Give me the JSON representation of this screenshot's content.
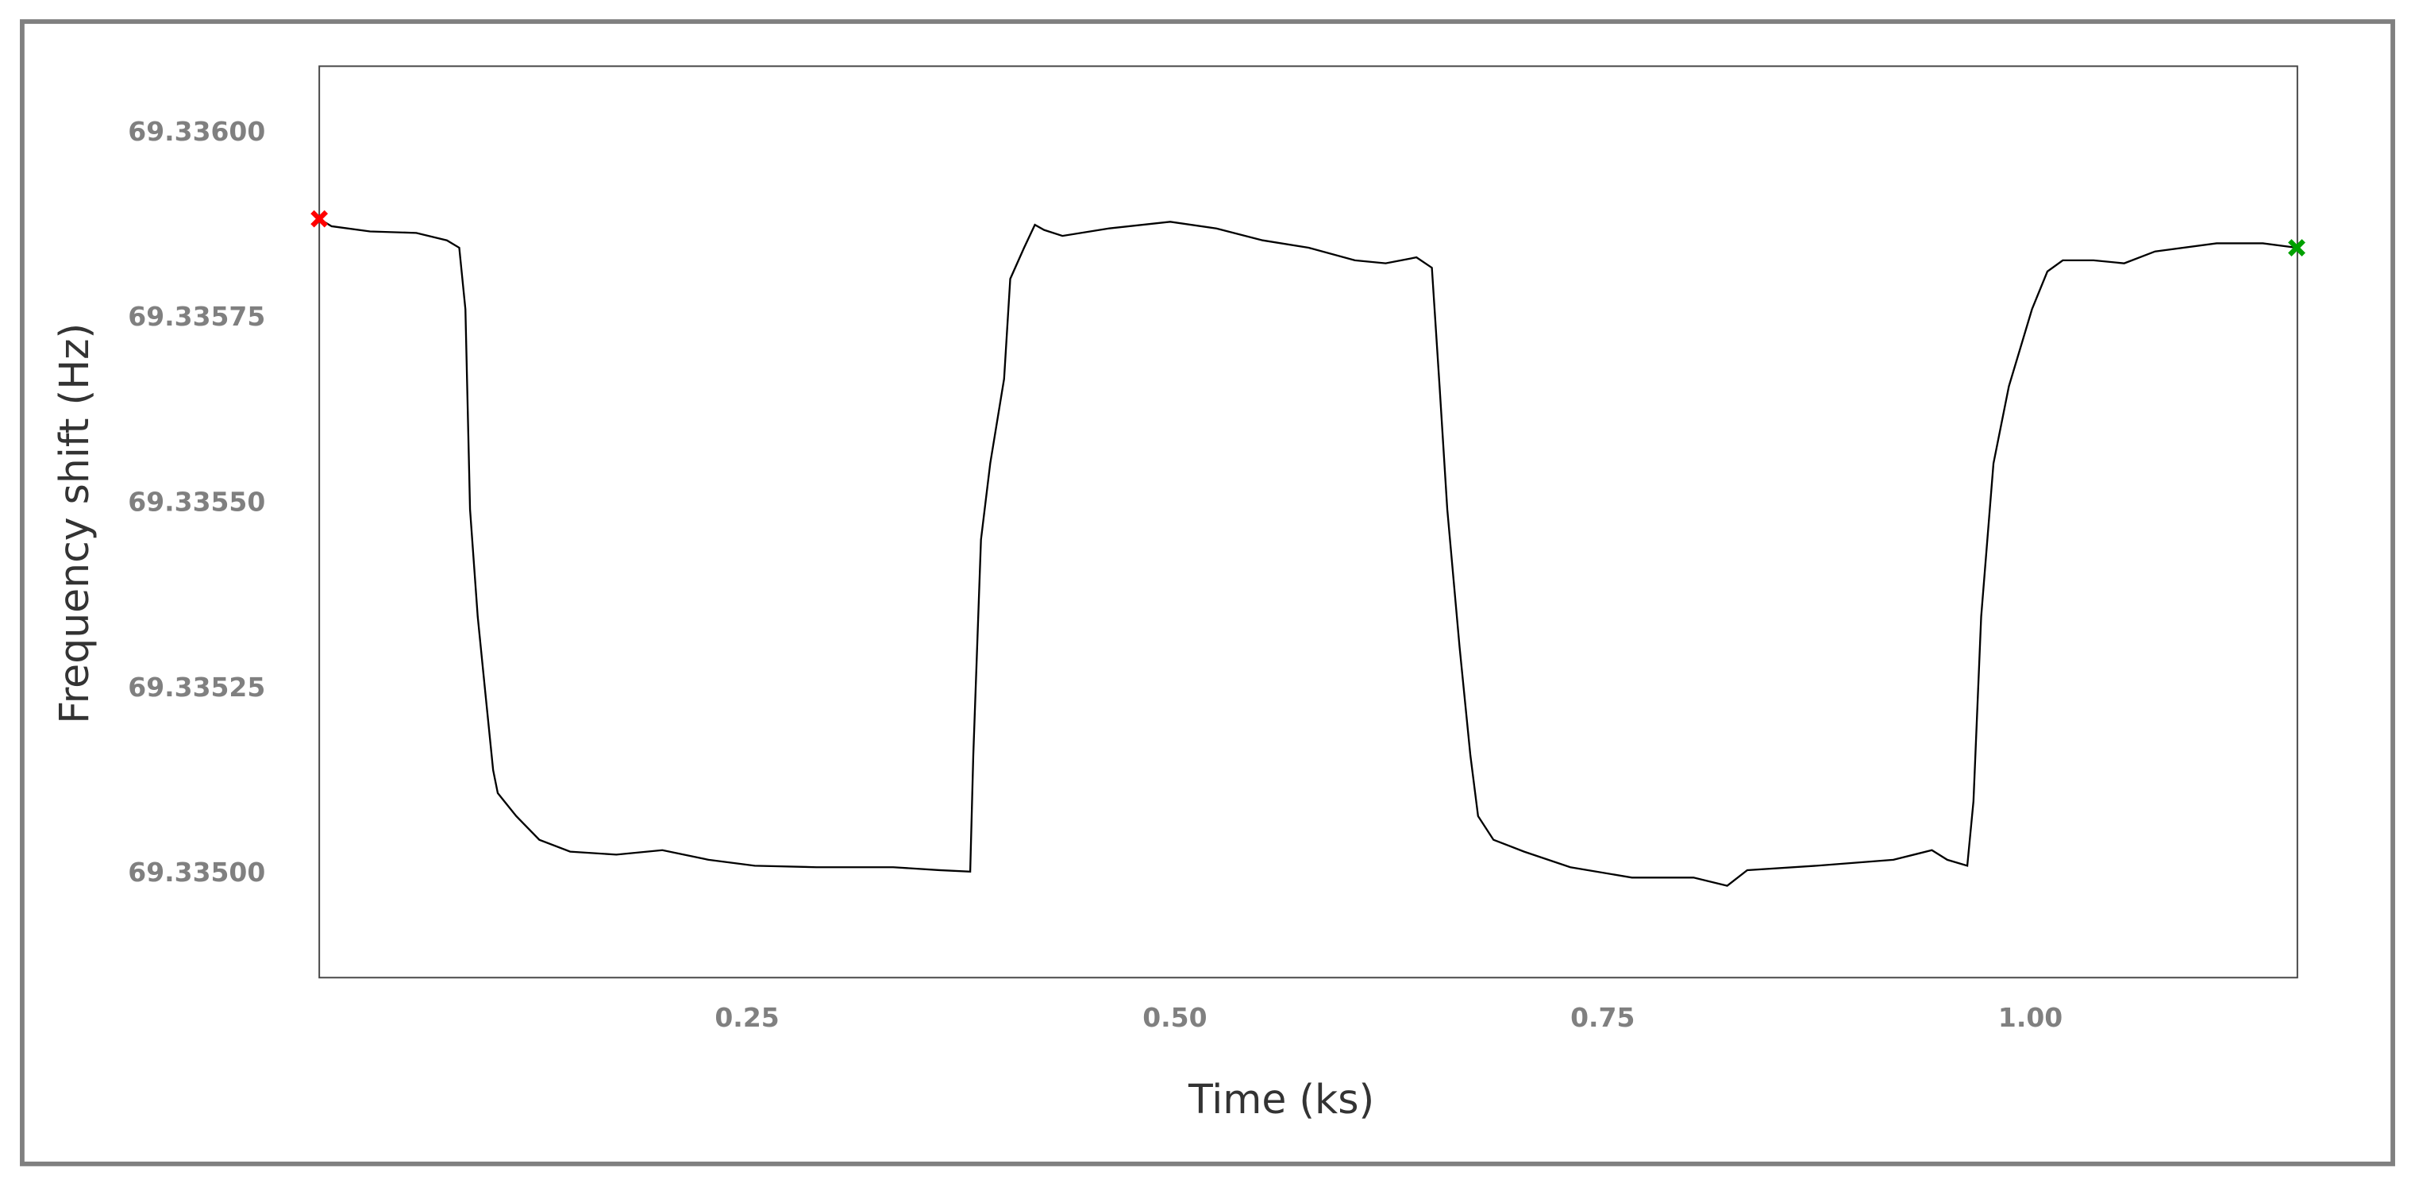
{
  "chart_data": {
    "type": "line",
    "x_label": "Time (ks)",
    "y_label": "Frequency shift (Hz)",
    "x": [
      0,
      0.0072,
      0.0297,
      0.0567,
      0.0746,
      0.0818,
      0.0854,
      0.0881,
      0.0926,
      0.0971,
      0.1016,
      0.1043,
      0.1151,
      0.1286,
      0.1466,
      0.1736,
      0.2005,
      0.2275,
      0.2545,
      0.2905,
      0.3354,
      0.3624,
      0.3804,
      0.3822,
      0.3867,
      0.3921,
      0.4002,
      0.4038,
      0.4119,
      0.4182,
      0.4236,
      0.4343,
      0.4613,
      0.4973,
      0.5243,
      0.5513,
      0.5782,
      0.6052,
      0.6232,
      0.6412,
      0.6502,
      0.6547,
      0.6592,
      0.6664,
      0.6727,
      0.6772,
      0.6862,
      0.7041,
      0.7311,
      0.7671,
      0.8031,
      0.8228,
      0.8345,
      0.875,
      0.9199,
      0.9424,
      0.9514,
      0.9631,
      0.9667,
      0.9712,
      0.9784,
      0.9874,
      1.0009,
      1.0099,
      1.0189,
      1.0369,
      1.0548,
      1.0728,
      1.1088,
      1.1358,
      1.1556
    ],
    "values": [
      69.335884,
      69.335874,
      69.335867,
      69.335865,
      69.335855,
      69.335845,
      69.335762,
      69.335492,
      69.335347,
      69.335243,
      69.33514,
      69.335109,
      69.335078,
      69.335046,
      69.33503,
      69.335026,
      69.335032,
      69.335019,
      69.335011,
      69.335009,
      69.335009,
      69.335005,
      69.335003,
      69.33516,
      69.335451,
      69.335554,
      69.335668,
      69.335803,
      69.335845,
      69.335876,
      69.335869,
      69.335861,
      69.335871,
      69.33588,
      69.335871,
      69.335855,
      69.335845,
      69.335828,
      69.335824,
      69.335832,
      69.335818,
      69.335658,
      69.335492,
      69.335306,
      69.33516,
      69.335078,
      69.335046,
      69.33503,
      69.335009,
      69.334995,
      69.334995,
      69.334984,
      69.335005,
      69.335011,
      69.335019,
      69.335032,
      69.335019,
      69.335011,
      69.335098,
      69.335347,
      69.335554,
      69.335658,
      69.335762,
      69.335813,
      69.335828,
      69.335828,
      69.335824,
      69.33584,
      69.335851,
      69.335851,
      69.335845
    ],
    "color": "#000000",
    "points": [
      {
        "x": 0,
        "y": 69.335884,
        "color": "#ff0000"
      },
      {
        "x": 1.1556,
        "y": 69.335845,
        "color": "#00a000"
      }
    ],
    "xlim": [
      0,
      1.156
    ],
    "ylim": [
      69.33486,
      69.33609
    ],
    "xticks": [
      0.25,
      {
        "value": 0.5,
        "label": "0.50"
      },
      0.75,
      {
        "value": 1,
        "label": "1.00"
      }
    ],
    "yticks": [
      {
        "value": 69.335,
        "label": "69.33500"
      },
      {
        "value": 69.33525,
        "label": "69.33525"
      },
      {
        "value": 69.3355,
        "label": "69.33550"
      },
      {
        "value": 69.33575,
        "label": "69.33575"
      },
      {
        "value": 69.336,
        "label": "69.33600"
      }
    ],
    "grid": false
  }
}
